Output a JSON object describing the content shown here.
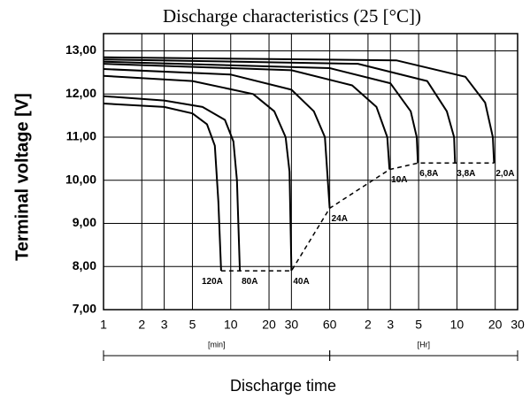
{
  "chart_data": {
    "type": "line",
    "title": "Discharge characteristics (25 [°C])",
    "xlabel": "Discharge time",
    "ylabel": "Terminal voltage  [V]",
    "xscale": "log",
    "xlim": [
      1,
      1800
    ],
    "ylim": [
      7,
      13.4
    ],
    "xticks": [
      1,
      2,
      3,
      5,
      10,
      20,
      30,
      60,
      {
        "value": 120,
        "label": "2"
      },
      {
        "value": 180,
        "label": "3"
      },
      {
        "value": 300,
        "label": "5"
      },
      {
        "value": 600,
        "label": "10"
      },
      {
        "value": 1200,
        "label": "20"
      },
      {
        "value": 1800,
        "label": "30"
      }
    ],
    "yticks": [
      {
        "value": 7,
        "label": "7,00"
      },
      {
        "value": 8,
        "label": "8,00"
      },
      {
        "value": 9,
        "label": "9,00"
      },
      {
        "value": 10,
        "label": "10,00"
      },
      {
        "value": 11,
        "label": "11,00"
      },
      {
        "value": 12,
        "label": "12,00"
      },
      {
        "value": 13,
        "label": "13,00"
      }
    ],
    "grid": true,
    "x_sections": [
      {
        "label": "[min]",
        "range": [
          1,
          60
        ]
      },
      {
        "label": "[Hr]",
        "range": [
          60,
          1800
        ]
      }
    ],
    "series": [
      {
        "name": "120A",
        "color": "#000000",
        "x": [
          1,
          3,
          5,
          6.5,
          7.5,
          8,
          8.4
        ],
        "values": [
          11.78,
          11.7,
          11.55,
          11.3,
          10.8,
          9.5,
          7.9
        ]
      },
      {
        "name": "80A",
        "color": "#000000",
        "x": [
          1,
          3,
          6,
          9,
          10.5,
          11.2,
          11.8
        ],
        "values": [
          11.95,
          11.85,
          11.7,
          11.4,
          10.9,
          10.0,
          7.9
        ]
      },
      {
        "name": "40A",
        "color": "#000000",
        "x": [
          1,
          5,
          15,
          22,
          27,
          29,
          30
        ],
        "values": [
          12.42,
          12.3,
          12.0,
          11.6,
          11.0,
          10.2,
          7.9
        ]
      },
      {
        "name": "24A",
        "color": "#000000",
        "x": [
          1,
          10,
          30,
          45,
          55,
          60
        ],
        "values": [
          12.58,
          12.45,
          12.1,
          11.6,
          11.0,
          9.35
        ]
      },
      {
        "name": "10A",
        "color": "#000000",
        "x": [
          1,
          30,
          90,
          140,
          170,
          177
        ],
        "values": [
          12.7,
          12.55,
          12.2,
          11.7,
          11.0,
          10.25
        ]
      },
      {
        "name": "6,8A",
        "color": "#000000",
        "x": [
          1,
          60,
          180,
          260,
          290,
          296
        ],
        "values": [
          12.75,
          12.6,
          12.25,
          11.6,
          11.0,
          10.4
        ]
      },
      {
        "name": "3,8A",
        "color": "#000000",
        "x": [
          1,
          100,
          350,
          500,
          570,
          580
        ],
        "values": [
          12.8,
          12.7,
          12.3,
          11.6,
          11.0,
          10.4
        ]
      },
      {
        "name": "2,0A",
        "color": "#000000",
        "x": [
          1,
          200,
          700,
          1000,
          1150,
          1175
        ],
        "values": [
          12.85,
          12.78,
          12.4,
          11.8,
          11.0,
          10.4
        ]
      }
    ],
    "cutoff_line": {
      "style": "dashed",
      "x": [
        8.4,
        30,
        60,
        177,
        296,
        1175
      ],
      "values": [
        7.9,
        7.9,
        9.35,
        10.25,
        10.4,
        10.4
      ]
    }
  }
}
